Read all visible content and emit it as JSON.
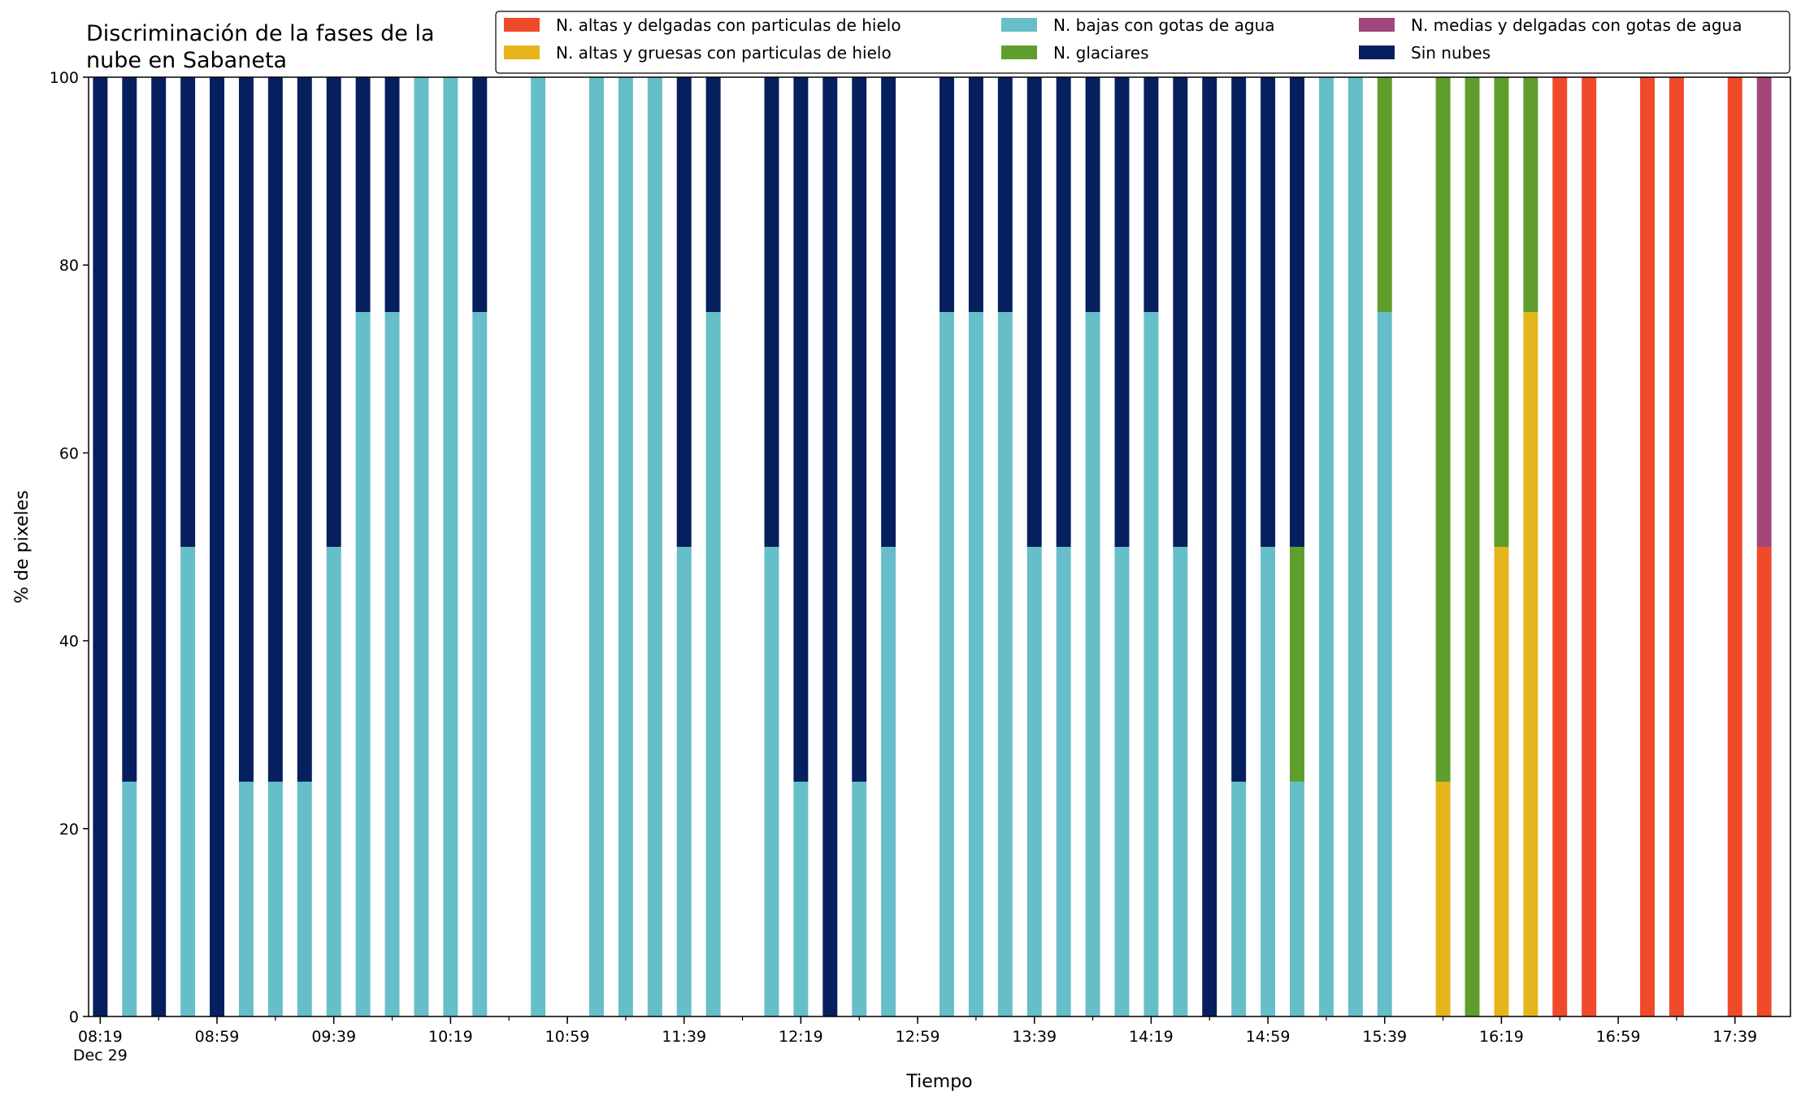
{
  "chart_data": {
    "type": "bar",
    "stacked": true,
    "title": "Discriminación de la fases de la\nnube en Sabaneta",
    "xlabel": "Tiempo",
    "ylabel": "% de pixeles",
    "ylim": [
      0,
      100
    ],
    "yticks": [
      0,
      20,
      40,
      60,
      80,
      100
    ],
    "grid": false,
    "legend_position": "top-right",
    "legend_columns": 3,
    "x_tick_labels": [
      "08:19\nDec 29",
      "08:59",
      "09:39",
      "10:19",
      "10:59",
      "11:39",
      "12:19",
      "12:59",
      "13:39",
      "14:19",
      "14:59",
      "15:39",
      "16:19",
      "16:59",
      "17:39"
    ],
    "x_tick_times": [
      "08:19",
      "08:59",
      "09:39",
      "10:19",
      "10:59",
      "11:39",
      "12:19",
      "12:59",
      "13:39",
      "14:19",
      "14:59",
      "15:39",
      "16:19",
      "16:59",
      "17:39"
    ],
    "categories": [
      "08:19",
      "08:29",
      "08:39",
      "08:49",
      "08:59",
      "09:09",
      "09:19",
      "09:29",
      "09:39",
      "09:49",
      "09:59",
      "10:09",
      "10:19",
      "10:29",
      "10:39",
      "10:49",
      "10:59",
      "11:09",
      "11:19",
      "11:29",
      "11:39",
      "11:49",
      "11:59",
      "12:09",
      "12:19",
      "12:29",
      "12:39",
      "12:49",
      "12:59",
      "13:09",
      "13:19",
      "13:29",
      "13:39",
      "13:49",
      "13:59",
      "14:09",
      "14:19",
      "14:29",
      "14:39",
      "14:49",
      "14:59",
      "15:09",
      "15:19",
      "15:29",
      "15:39",
      "15:49",
      "15:59",
      "16:09",
      "16:19",
      "16:29",
      "16:39",
      "16:49",
      "16:59",
      "17:09",
      "17:19",
      "17:29",
      "17:39",
      "17:49"
    ],
    "series": [
      {
        "name": "N. altas y delgadas con particulas de hielo",
        "color": "#ef4b2b",
        "values": [
          0,
          0,
          0,
          0,
          0,
          0,
          0,
          0,
          0,
          0,
          0,
          0,
          0,
          0,
          0,
          0,
          0,
          0,
          0,
          0,
          0,
          0,
          0,
          0,
          0,
          0,
          0,
          0,
          0,
          0,
          0,
          0,
          0,
          0,
          0,
          0,
          0,
          0,
          0,
          0,
          0,
          0,
          0,
          0,
          0,
          0,
          0,
          0,
          0,
          0,
          100,
          100,
          0,
          100,
          100,
          0,
          100,
          50
        ]
      },
      {
        "name": "N. altas y gruesas con particulas de hielo",
        "color": "#e6b51c",
        "values": [
          0,
          0,
          0,
          0,
          0,
          0,
          0,
          0,
          0,
          0,
          0,
          0,
          0,
          0,
          0,
          0,
          0,
          0,
          0,
          0,
          0,
          0,
          0,
          0,
          0,
          0,
          0,
          0,
          0,
          0,
          0,
          0,
          0,
          0,
          0,
          0,
          0,
          0,
          0,
          0,
          0,
          0,
          0,
          0,
          0,
          0,
          25,
          0,
          50,
          75,
          0,
          0,
          0,
          0,
          0,
          0,
          0,
          0
        ]
      },
      {
        "name": "N. bajas con gotas de agua",
        "color": "#66bec8",
        "values": [
          0,
          25,
          0,
          50,
          0,
          25,
          25,
          25,
          50,
          75,
          75,
          100,
          100,
          75,
          0,
          100,
          0,
          100,
          100,
          100,
          50,
          75,
          0,
          50,
          25,
          0,
          25,
          50,
          0,
          75,
          75,
          75,
          50,
          50,
          75,
          50,
          75,
          50,
          0,
          25,
          50,
          25,
          100,
          100,
          75,
          0,
          0,
          0,
          0,
          0,
          0,
          0,
          0,
          0,
          0,
          0,
          0,
          0
        ]
      },
      {
        "name": "N. glaciares",
        "color": "#5f9e2c",
        "values": [
          0,
          0,
          0,
          0,
          0,
          0,
          0,
          0,
          0,
          0,
          0,
          0,
          0,
          0,
          0,
          0,
          0,
          0,
          0,
          0,
          0,
          0,
          0,
          0,
          0,
          0,
          0,
          0,
          0,
          0,
          0,
          0,
          0,
          0,
          0,
          0,
          0,
          0,
          0,
          0,
          0,
          25,
          0,
          0,
          25,
          0,
          75,
          100,
          50,
          25,
          0,
          0,
          0,
          0,
          0,
          0,
          0,
          0
        ]
      },
      {
        "name": "N. medias y delgadas con gotas de agua",
        "color": "#a2467c",
        "values": [
          0,
          0,
          0,
          0,
          0,
          0,
          0,
          0,
          0,
          0,
          0,
          0,
          0,
          0,
          0,
          0,
          0,
          0,
          0,
          0,
          0,
          0,
          0,
          0,
          0,
          0,
          0,
          0,
          0,
          0,
          0,
          0,
          0,
          0,
          0,
          0,
          0,
          0,
          0,
          0,
          0,
          0,
          0,
          0,
          0,
          0,
          0,
          0,
          0,
          0,
          0,
          0,
          0,
          0,
          0,
          0,
          0,
          50
        ]
      },
      {
        "name": "Sin nubes",
        "color": "#061f5e",
        "values": [
          100,
          75,
          100,
          50,
          100,
          75,
          75,
          75,
          50,
          25,
          25,
          0,
          0,
          25,
          0,
          0,
          0,
          0,
          0,
          0,
          50,
          25,
          0,
          50,
          75,
          100,
          75,
          50,
          0,
          25,
          25,
          25,
          50,
          50,
          25,
          50,
          25,
          50,
          100,
          75,
          50,
          50,
          0,
          0,
          0,
          0,
          0,
          0,
          0,
          0,
          0,
          0,
          0,
          0,
          0,
          0,
          0,
          0
        ]
      }
    ]
  }
}
